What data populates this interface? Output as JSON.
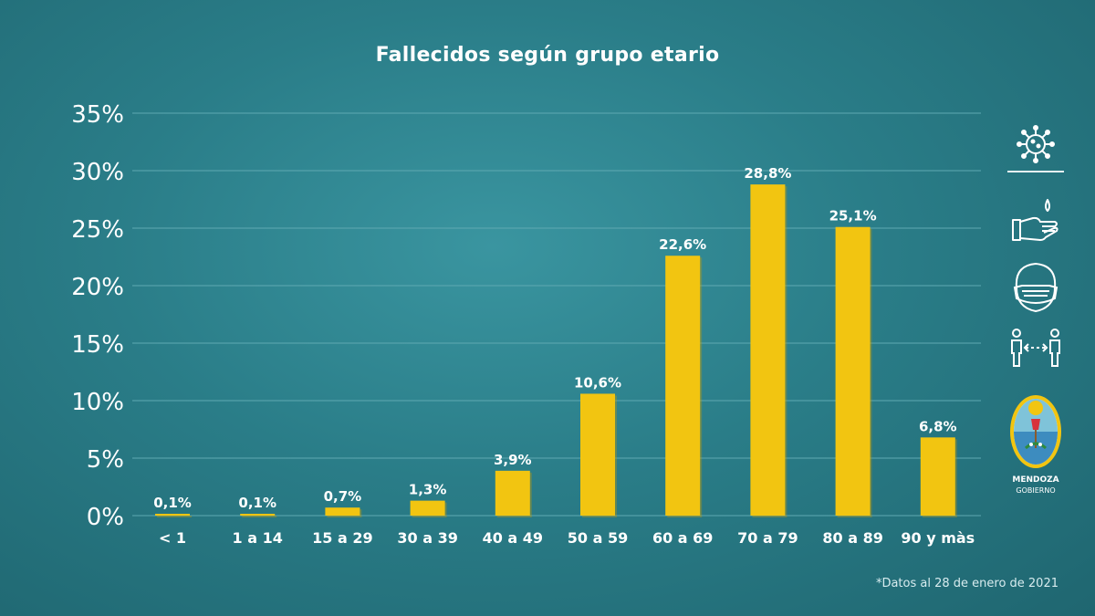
{
  "chart_data": {
    "type": "bar",
    "title": "Fallecidos según grupo etario",
    "categories": [
      "< 1",
      "1 a 14",
      "15 a 29",
      "30 a 39",
      "40 a 49",
      "50 a 59",
      "60 a 69",
      "70 a 79",
      "80 a 89",
      "90 y màs"
    ],
    "values": [
      0.1,
      0.1,
      0.7,
      1.3,
      3.9,
      10.6,
      22.6,
      28.8,
      25.1,
      6.8
    ],
    "value_labels": [
      "0,1%",
      "0,1%",
      "0,7%",
      "1,3%",
      "3,9%",
      "10,6%",
      "22,6%",
      "28,8%",
      "25,1%",
      "6,8%"
    ],
    "yticks": [
      0,
      5,
      10,
      15,
      20,
      25,
      30,
      35
    ],
    "ytick_labels": [
      "0%",
      "5%",
      "10%",
      "15%",
      "20%",
      "25%",
      "30%",
      "35%"
    ],
    "ylim": [
      0,
      35
    ],
    "grid": true,
    "xlabel": "",
    "ylabel": ""
  },
  "footnote": "*Datos al 28 de enero de 2021",
  "colors": {
    "bar": "#f2c511",
    "bar_shadow": "#c99b00",
    "grid": "#5fa9b2",
    "text": "#ffffff"
  },
  "sidebar": {
    "icons": [
      "virus-icon",
      "hand-washing-icon",
      "face-mask-icon",
      "social-distance-icon",
      "mendoza-shield-icon"
    ],
    "logo_text_1": "MENDOZA",
    "logo_text_2": "GOBIERNO"
  }
}
